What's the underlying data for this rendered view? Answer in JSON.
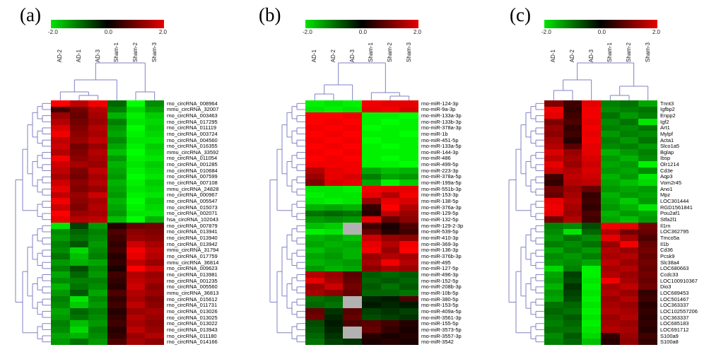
{
  "colors": {
    "dendrogram": "#8282c4",
    "positive_max": "#ff0000",
    "negative_max": "#00ff00",
    "zero": "#000000",
    "missing": "#b2b2b2",
    "background": "#ffffff"
  },
  "chart_data": [
    {
      "type": "heatmap",
      "panel_label": "(a)",
      "colorbar": {
        "min": -2.0,
        "mid": 0.0,
        "max": 2.0,
        "min_label": "-2.0",
        "mid_label": "0.0",
        "max_label": "2.0"
      },
      "columns": [
        "AD-2",
        "AD-1",
        "AD-3",
        "Sham-1",
        "Sham-2",
        "Sham-3"
      ],
      "rows": [
        "rno_circRNA_008964",
        "mmu_circRNA_32007",
        "rno_circRNA_003463",
        "rno_circRNA_017295",
        "rno_circRNA_011119",
        "rno_circRNA_003724",
        "rno_circRNA_004560",
        "rno_circRNA_016355",
        "mmu_circRNA_33592",
        "rno_circRNA_011054",
        "rno_circRNA_001285",
        "rno_circRNA_010684",
        "rno_circRNA_007599",
        "rno_circRNA_007108",
        "mmu_circRNA_24828",
        "rno_circRNA_000967",
        "rno_circRNA_005547",
        "rno_circRNA_015073",
        "rno_circRNA_002071",
        "hsa_circRNA_102043",
        "rno_circRNA_007879",
        "rno_circRNA_013941",
        "rno_circRNA_013940",
        "rno_circRNA_013942",
        "mmu_circRNA_31794",
        "rno_circRNA_017759",
        "mmu_circRNA_36814",
        "rno_circRNA_009623",
        "rno_circRNA_013981",
        "rno_circRNA_001235",
        "rno_circRNA_005560",
        "mmu_circRNA_36813",
        "rno_circRNA_015612",
        "rno_circRNA_011731",
        "rno_circRNA_013026",
        "rno_circRNA_013025",
        "rno_circRNA_013022",
        "rno_circRNA_013943",
        "rno_circRNA_011180",
        "rno_circRNA_014166"
      ],
      "values": [
        [
          2.0,
          1.5,
          1.9,
          -0.8,
          -2.0,
          -1.1
        ],
        [
          0.5,
          0.9,
          1.4,
          -1.0,
          -1.7,
          -1.3
        ],
        [
          1.2,
          0.8,
          1.3,
          -1.4,
          -1.9,
          -1.6
        ],
        [
          1.4,
          0.9,
          1.2,
          -1.0,
          -1.8,
          -1.7
        ],
        [
          1.7,
          1.0,
          1.4,
          -1.2,
          -2.0,
          -1.6
        ],
        [
          1.9,
          1.1,
          1.3,
          -1.3,
          -1.9,
          -1.7
        ],
        [
          1.5,
          1.2,
          1.5,
          -1.1,
          -1.8,
          -1.8
        ],
        [
          1.6,
          0.9,
          1.2,
          -1.3,
          -1.9,
          -1.6
        ],
        [
          1.4,
          1.0,
          1.4,
          -1.5,
          -2.0,
          -1.7
        ],
        [
          1.9,
          1.1,
          1.3,
          -1.2,
          -1.9,
          -1.8
        ],
        [
          1.6,
          1.3,
          1.2,
          -1.4,
          -1.8,
          -1.6
        ],
        [
          1.5,
          1.0,
          1.5,
          -1.3,
          -1.9,
          -1.7
        ],
        [
          1.3,
          0.9,
          1.3,
          -1.2,
          -2.0,
          -1.8
        ],
        [
          1.6,
          1.1,
          1.4,
          -1.4,
          -1.9,
          -1.6
        ],
        [
          1.8,
          1.0,
          1.2,
          -1.3,
          -1.8,
          -1.7
        ],
        [
          1.5,
          1.2,
          1.6,
          -1.2,
          -1.9,
          -1.8
        ],
        [
          1.9,
          1.1,
          1.3,
          -1.4,
          -2.0,
          -1.6
        ],
        [
          1.6,
          1.0,
          1.4,
          -1.3,
          -1.9,
          -1.7
        ],
        [
          2.0,
          1.2,
          1.3,
          -1.2,
          -1.8,
          -1.8
        ],
        [
          1.8,
          1.4,
          1.5,
          -1.5,
          -2.0,
          -1.4
        ],
        [
          -1.8,
          -0.5,
          -1.2,
          0.3,
          0.8,
          0.9
        ],
        [
          -1.1,
          -0.8,
          -1.0,
          0.6,
          1.1,
          1.0
        ],
        [
          -1.2,
          -0.9,
          -1.1,
          0.5,
          1.2,
          1.1
        ],
        [
          -1.0,
          -0.7,
          -1.2,
          0.4,
          1.6,
          1.3
        ],
        [
          -1.1,
          -1.7,
          -1.1,
          0.5,
          1.9,
          1.5
        ],
        [
          -0.9,
          -1.5,
          -1.0,
          0.3,
          1.8,
          1.4
        ],
        [
          -1.2,
          -1.4,
          -1.3,
          0.4,
          1.5,
          1.2
        ],
        [
          -1.0,
          -0.6,
          -1.1,
          0.2,
          2.0,
          1.6
        ],
        [
          -1.3,
          -0.8,
          -1.2,
          0.5,
          1.4,
          1.2
        ],
        [
          -1.1,
          -1.0,
          -1.0,
          0.4,
          1.5,
          1.3
        ],
        [
          -1.4,
          -0.9,
          -1.1,
          0.3,
          1.6,
          1.1
        ],
        [
          -1.2,
          -0.7,
          -1.3,
          0.6,
          1.4,
          1.2
        ],
        [
          -1.0,
          -1.8,
          -1.1,
          0.4,
          1.3,
          1.0
        ],
        [
          -1.1,
          -1.6,
          -1.2,
          0.5,
          1.5,
          1.1
        ],
        [
          -1.3,
          -0.8,
          -1.0,
          0.3,
          1.2,
          1.3
        ],
        [
          -1.2,
          -0.9,
          -1.1,
          0.4,
          1.4,
          1.2
        ],
        [
          -1.0,
          -1.5,
          -1.2,
          0.5,
          1.3,
          1.1
        ],
        [
          -1.1,
          -1.7,
          -1.0,
          0.3,
          1.5,
          1.2
        ],
        [
          -1.3,
          -1.4,
          -1.1,
          0.4,
          1.2,
          1.4
        ],
        [
          -1.2,
          -0.9,
          -1.2,
          0.6,
          1.3,
          1.1
        ]
      ],
      "column_dendrogram": {
        "h": 53,
        "c": [
          {
            "h": 29,
            "c": [
              {
                "h": 12,
                "c": [
                  0,
                  {
                    "h": 7,
                    "c": [
                      1,
                      2
                    ]
                  }
                ]
              },
              3
            ]
          },
          {
            "h": 12,
            "c": [
              4,
              5
            ]
          }
        ]
      }
    },
    {
      "type": "heatmap",
      "panel_label": "(b)",
      "colorbar": {
        "min": -2.0,
        "mid": 0.0,
        "max": 2.0,
        "min_label": "-2.0",
        "mid_label": "0.0",
        "max_label": "2.0"
      },
      "columns": [
        "AD-1",
        "AD-2",
        "AD-3",
        "Sham-1",
        "Sham-2",
        "Sham-3"
      ],
      "rows": [
        "rno-miR-124-3p",
        "rno-miR-9a-3p",
        "rno-miR-133a-3p",
        "rno-miR-133b-3p",
        "rno-miR-378a-3p",
        "rno-miR-1b",
        "rno-miR-451-5p",
        "rno-miR-133a-5p",
        "rno-miR-144-3p",
        "rno-miR-486",
        "rno-miR-499-5p",
        "rno-miR-223-3p",
        "rno-miR-378a-5p",
        "rno-miR-199a-5p",
        "rno-miR-551b-3p",
        "rno-miR-153-3p",
        "rno-miR-138-5p",
        "rno-miR-376a-3p",
        "rno-miR-129-5p",
        "rno-miR-132-5p",
        "rno-miR-129-2-3p",
        "rno-miR-539-5p",
        "rno-miR-410-3p",
        "rno-miR-369-3p",
        "rno-miR-136-3p",
        "rno-miR-376b-3p",
        "rno-miR-495",
        "rno-miR-127-5p",
        "rno-miR-496-3p",
        "rno-miR-152-5p",
        "rno-miR-208b-3p",
        "rno-miR-10b-5p",
        "rno-miR-380-5p",
        "rno-miR-153-5p",
        "rno-miR-409a-5p",
        "rno-miR-3561-3p",
        "rno-miR-155-5p",
        "rno-miR-3573-5p",
        "rno-miR-3557-3p",
        "rno-miR-3542"
      ],
      "values": [
        [
          -1.9,
          -1.8,
          -1.9,
          1.9,
          1.8,
          1.8
        ],
        [
          -1.8,
          -1.9,
          -1.8,
          1.8,
          1.9,
          1.7
        ],
        [
          2.0,
          2.0,
          1.9,
          -1.9,
          -1.9,
          -2.0
        ],
        [
          2.0,
          1.9,
          2.0,
          -1.9,
          -2.0,
          -1.9
        ],
        [
          1.9,
          2.0,
          1.9,
          -2.0,
          -1.9,
          -1.9
        ],
        [
          2.0,
          1.9,
          2.0,
          -1.9,
          -1.9,
          -2.0
        ],
        [
          1.9,
          2.0,
          1.9,
          -2.0,
          -1.9,
          -1.9
        ],
        [
          2.0,
          1.9,
          2.0,
          -1.9,
          -2.0,
          -1.9
        ],
        [
          1.9,
          2.0,
          1.9,
          -1.9,
          -1.9,
          -1.9
        ],
        [
          2.0,
          1.9,
          2.0,
          -1.9,
          -2.0,
          -1.9
        ],
        [
          1.9,
          1.9,
          1.9,
          -1.9,
          -1.9,
          -2.0
        ],
        [
          1.4,
          1.8,
          1.9,
          -1.3,
          -1.5,
          -1.4
        ],
        [
          1.2,
          1.8,
          1.7,
          -1.0,
          -1.3,
          -1.2
        ],
        [
          1.0,
          1.7,
          1.8,
          -1.3,
          -1.9,
          -1.6
        ],
        [
          -1.8,
          -1.8,
          -1.9,
          1.9,
          1.8,
          1.8
        ],
        [
          -1.9,
          -1.8,
          -1.8,
          1.8,
          1.4,
          1.9
        ],
        [
          -1.8,
          -1.9,
          -1.8,
          1.2,
          1.8,
          1.7
        ],
        [
          -1.4,
          -1.3,
          -1.4,
          0.4,
          2.0,
          1.4
        ],
        [
          -0.9,
          -0.8,
          -0.9,
          0.3,
          1.5,
          1.2
        ],
        [
          -1.2,
          -1.1,
          -1.2,
          1.8,
          0.8,
          1.1
        ],
        [
          -1.5,
          -1.6,
          null,
          0.5,
          0.2,
          0.6
        ],
        [
          -1.9,
          -1.8,
          null,
          0.8,
          0.3,
          0.5
        ],
        [
          -1.4,
          -1.3,
          -1.5,
          1.6,
          1.2,
          1.1
        ],
        [
          -1.3,
          -1.4,
          -1.3,
          1.8,
          1.4,
          1.9
        ],
        [
          -1.5,
          -1.3,
          -1.4,
          1.9,
          1.2,
          2.0
        ],
        [
          -1.3,
          -1.2,
          -1.4,
          1.2,
          1.4,
          1.3
        ],
        [
          -1.4,
          -1.3,
          -1.2,
          1.3,
          1.9,
          1.4
        ],
        [
          -1.2,
          -1.4,
          -1.3,
          1.1,
          1.3,
          1.2
        ],
        [
          1.4,
          1.2,
          0.7,
          -0.7,
          -0.8,
          -0.7
        ],
        [
          1.8,
          1.3,
          0.8,
          -0.8,
          -0.7,
          -0.8
        ],
        [
          1.2,
          1.6,
          0.9,
          -0.7,
          -0.9,
          -0.7
        ],
        [
          1.3,
          1.1,
          0.8,
          -0.8,
          -0.8,
          -0.9
        ],
        [
          -0.9,
          -0.8,
          null,
          -0.3,
          -0.2,
          0.6
        ],
        [
          -0.8,
          -0.9,
          null,
          -0.2,
          -0.3,
          -0.2
        ],
        [
          0.8,
          -0.4,
          0.7,
          -0.5,
          -0.4,
          -0.5
        ],
        [
          0.9,
          -0.3,
          0.8,
          -0.6,
          -0.5,
          -0.4
        ],
        [
          -0.6,
          -0.2,
          0.6,
          0.7,
          0.5,
          0.3
        ],
        [
          -0.7,
          -0.3,
          null,
          0.8,
          0.4,
          0.2
        ],
        [
          -0.8,
          -0.4,
          null,
          0.3,
          0.2,
          0.3
        ],
        [
          -0.9,
          -0.5,
          -0.4,
          0.2,
          0.3,
          0.2
        ]
      ],
      "column_dendrogram": {
        "h": 53,
        "c": [
          {
            "h": 22,
            "c": [
              {
                "h": 9,
                "c": [
                  0,
                  1
                ]
              },
              2
            ]
          },
          {
            "h": 11,
            "c": [
              3,
              {
                "h": 6,
                "c": [
                  4,
                  5
                ]
              }
            ]
          }
        ]
      }
    },
    {
      "type": "heatmap",
      "panel_label": "(c)",
      "colorbar": {
        "min": -2.0,
        "mid": 0.0,
        "max": 2.0,
        "min_label": "-2.0",
        "mid_label": "0.0",
        "max_label": "2.0"
      },
      "columns": [
        "AD-1",
        "AD-2",
        "AD-3",
        "Sham-1",
        "Sham-2",
        "Sham-3"
      ],
      "rows": [
        "Tnnt3",
        "Igfbp2",
        "Enpp2",
        "Igf2",
        "Art1",
        "Mylpf",
        "Acta1",
        "Slco1a5",
        "Bglap",
        "Ibsp",
        "Olr1214",
        "Cd3e",
        "Aqp3",
        "Vom2r45",
        "Ano1",
        "Mpz",
        "LOC301444",
        "RGD1561841",
        "Pou2af1",
        "Stfa2l1",
        "Il1rn",
        "LOC362795",
        "Tmco5a",
        "Il1b",
        "Cd36",
        "Pcsk9",
        "Slc38a4",
        "LOC680663",
        "Ccdc33",
        "LOC100910367",
        "Dio3",
        "LOC689453",
        "LOC501467",
        "LOC363337",
        "LOC102557206",
        "LOC363337",
        "LOC685183",
        "LOC691712",
        "S100a9",
        "S100a8"
      ],
      "values": [
        [
          1.0,
          0.5,
          1.8,
          -1.0,
          -0.9,
          -1.3
        ],
        [
          1.9,
          0.4,
          1.9,
          -1.1,
          -1.0,
          -0.9
        ],
        [
          1.8,
          0.5,
          1.9,
          -0.9,
          -1.2,
          -1.0
        ],
        [
          1.0,
          0.6,
          1.8,
          -1.1,
          -0.9,
          -1.8
        ],
        [
          1.2,
          0.4,
          1.9,
          -1.0,
          -1.1,
          -0.9
        ],
        [
          1.1,
          0.5,
          1.8,
          -1.2,
          -1.0,
          -1.1
        ],
        [
          1.3,
          0.3,
          1.9,
          -1.0,
          -1.2,
          -0.9
        ],
        [
          1.4,
          0.7,
          1.8,
          -1.1,
          -1.0,
          -1.2
        ],
        [
          1.7,
          1.2,
          1.8,
          -1.4,
          -1.2,
          -1.0
        ],
        [
          1.5,
          1.3,
          1.7,
          -1.2,
          -1.4,
          -1.1
        ],
        [
          1.8,
          1.2,
          1.6,
          -1.3,
          -1.2,
          -1.9
        ],
        [
          1.6,
          1.4,
          1.7,
          -1.2,
          -1.3,
          -1.1
        ],
        [
          0.5,
          1.5,
          1.6,
          -1.4,
          -1.2,
          -1.8
        ],
        [
          0.4,
          1.4,
          1.5,
          -1.3,
          -1.5,
          -1.7
        ],
        [
          0.9,
          1.2,
          0.8,
          -1.2,
          -1.3,
          -1.2
        ],
        [
          0.8,
          1.3,
          0.4,
          -1.4,
          -1.2,
          -1.3
        ],
        [
          1.8,
          1.4,
          0.5,
          -1.3,
          -1.6,
          -1.2
        ],
        [
          1.9,
          1.3,
          0.4,
          -1.2,
          -1.4,
          -1.8
        ],
        [
          1.8,
          1.2,
          0.6,
          -1.4,
          -1.2,
          -1.3
        ],
        [
          0.9,
          1.4,
          0.5,
          -1.3,
          -1.5,
          -1.2
        ],
        [
          -1.0,
          -1.1,
          -0.6,
          1.9,
          1.8,
          0.9
        ],
        [
          -1.1,
          -1.8,
          -0.8,
          1.4,
          0.9,
          0.8
        ],
        [
          -1.2,
          -0.9,
          -1.1,
          1.8,
          1.3,
          0.6
        ],
        [
          -1.0,
          -1.1,
          -0.9,
          1.2,
          1.9,
          0.8
        ],
        [
          -1.3,
          -1.0,
          -1.2,
          1.4,
          1.2,
          0.9
        ],
        [
          -1.1,
          -1.2,
          -1.0,
          1.3,
          1.4,
          0.8
        ],
        [
          -1.2,
          -1.1,
          -1.3,
          1.5,
          1.2,
          0.9
        ],
        [
          -1.7,
          -1.0,
          -1.9,
          1.3,
          1.4,
          0.8
        ],
        [
          -1.3,
          -0.5,
          -1.9,
          1.4,
          1.2,
          0.9
        ],
        [
          -1.2,
          -0.6,
          -1.8,
          1.9,
          1.3,
          0.8
        ],
        [
          -1.4,
          -0.4,
          -1.9,
          1.3,
          1.5,
          0.9
        ],
        [
          -1.2,
          -0.5,
          -1.8,
          1.4,
          1.2,
          0.4
        ],
        [
          -1.3,
          -0.6,
          -1.9,
          1.2,
          1.4,
          0.5
        ],
        [
          -0.9,
          -0.8,
          -1.8,
          1.3,
          1.2,
          0.3
        ],
        [
          -0.8,
          -0.9,
          -1.9,
          1.4,
          1.3,
          0.4
        ],
        [
          -0.9,
          -0.7,
          -1.8,
          1.2,
          1.4,
          0.3
        ],
        [
          -1.0,
          -0.8,
          -1.9,
          1.3,
          1.2,
          0.4
        ],
        [
          -0.9,
          -0.9,
          -1.8,
          1.4,
          1.3,
          0.3
        ],
        [
          -1.1,
          -0.7,
          -1.7,
          0.4,
          1.2,
          0.5
        ],
        [
          -1.0,
          -0.8,
          -1.5,
          0.3,
          1.1,
          0.4
        ]
      ],
      "column_dendrogram": {
        "h": 53,
        "c": [
          {
            "h": 29,
            "c": [
              {
                "h": 14,
                "c": [
                  0,
                  1
                ]
              },
              2
            ]
          },
          {
            "h": 20,
            "c": [
              {
                "h": 7,
                "c": [
                  3,
                  4
                ]
              },
              5
            ]
          }
        ]
      }
    }
  ]
}
